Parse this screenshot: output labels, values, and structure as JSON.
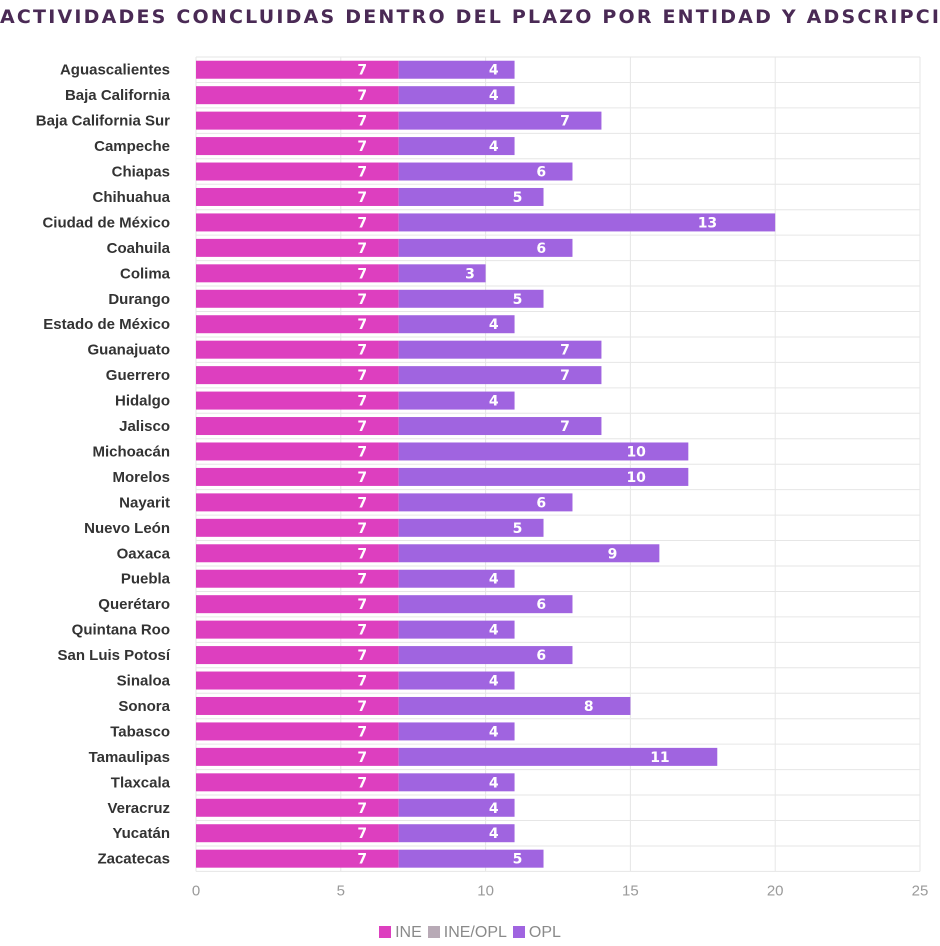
{
  "chart_data": {
    "type": "bar",
    "orientation": "horizontal",
    "stacked": true,
    "title": "ACTIVIDADES CONCLUIDAS DENTRO DEL PLAZO POR ENTIDAD Y ADSCRIPCIÓN",
    "categories": [
      "Aguascalientes",
      "Baja California",
      "Baja California Sur",
      "Campeche",
      "Chiapas",
      "Chihuahua",
      "Ciudad de México",
      "Coahuila",
      "Colima",
      "Durango",
      "Estado de México",
      "Guanajuato",
      "Guerrero",
      "Hidalgo",
      "Jalisco",
      "Michoacán",
      "Morelos",
      "Nayarit",
      "Nuevo León",
      "Oaxaca",
      "Puebla",
      "Querétaro",
      "Quintana Roo",
      "San Luis Potosí",
      "Sinaloa",
      "Sonora",
      "Tabasco",
      "Tamaulipas",
      "Tlaxcala",
      "Veracruz",
      "Yucatán",
      "Zacatecas"
    ],
    "series": [
      {
        "name": "INE",
        "color": "#dd3fbf",
        "values": [
          7,
          7,
          7,
          7,
          7,
          7,
          7,
          7,
          7,
          7,
          7,
          7,
          7,
          7,
          7,
          7,
          7,
          7,
          7,
          7,
          7,
          7,
          7,
          7,
          7,
          7,
          7,
          7,
          7,
          7,
          7,
          7
        ]
      },
      {
        "name": "INE/OPL",
        "color": "#b8aab6",
        "values": [
          0,
          0,
          0,
          0,
          0,
          0,
          0,
          0,
          0,
          0,
          0,
          0,
          0,
          0,
          0,
          0,
          0,
          0,
          0,
          0,
          0,
          0,
          0,
          0,
          0,
          0,
          0,
          0,
          0,
          0,
          0,
          0
        ]
      },
      {
        "name": "OPL",
        "color": "#a064e0",
        "values": [
          4,
          4,
          7,
          4,
          6,
          5,
          13,
          6,
          3,
          5,
          4,
          7,
          7,
          4,
          7,
          10,
          10,
          6,
          5,
          9,
          4,
          6,
          4,
          6,
          4,
          8,
          4,
          11,
          4,
          4,
          4,
          5
        ]
      }
    ],
    "xlim": [
      0,
      25
    ],
    "xticks": [
      0,
      5,
      10,
      15,
      20,
      25
    ],
    "grid": true,
    "legend_position": "bottom"
  }
}
